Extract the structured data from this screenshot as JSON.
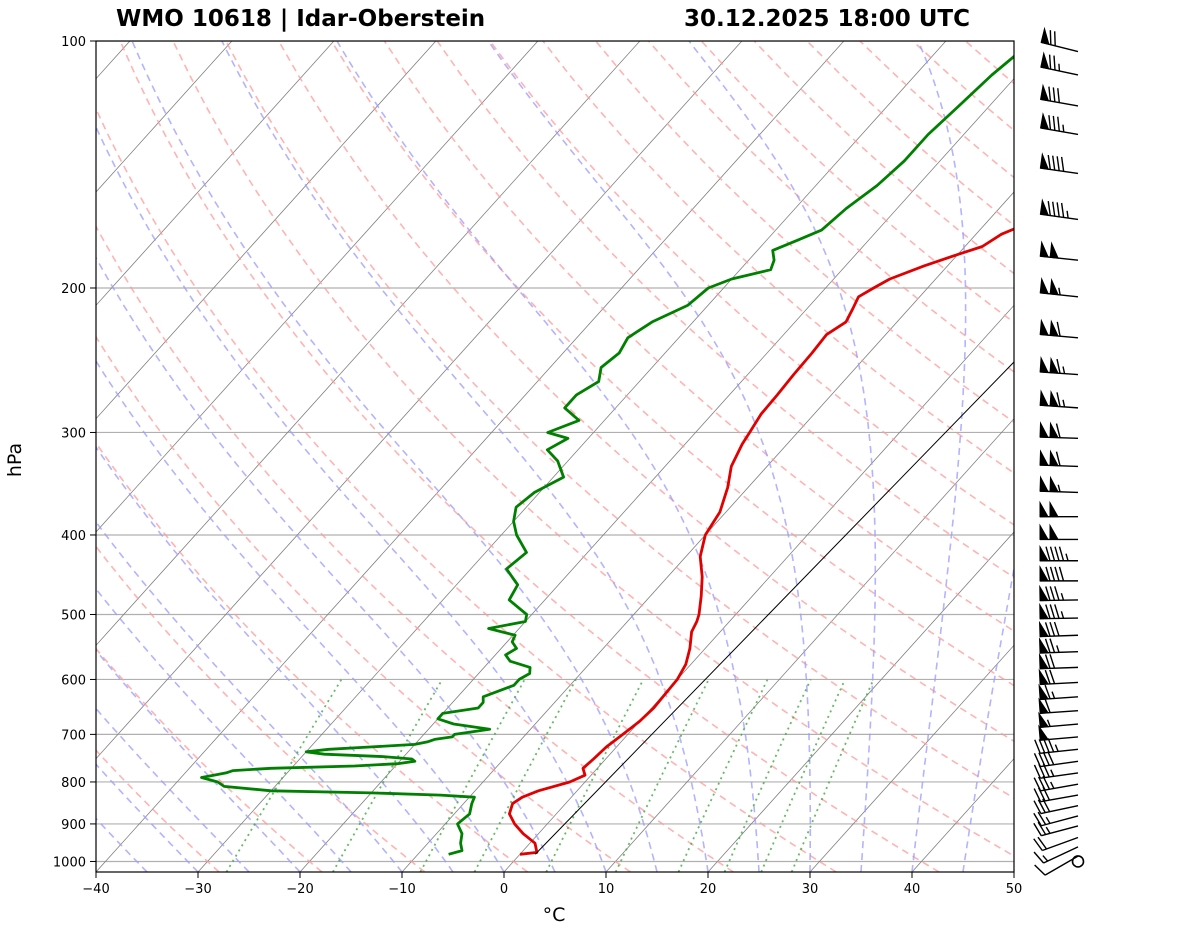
{
  "header": {
    "station": "WMO 10618 | Idar-Oberstein",
    "datetime": "30.12.2025 18:00 UTC"
  },
  "colors": {
    "temperature": "#e00000",
    "dewpoint": "#008000",
    "dry_adiabats": "#ff9a9a",
    "moist_adiabats": "#9a9aff",
    "mixing_ratio": "#3caa3c",
    "isotherms": "#808080",
    "grid": "#b0b0b0"
  },
  "chart_data": {
    "type": "line",
    "subtype": "skew-T log-P diagram",
    "xlabel": "°C",
    "ylabel": "hPa",
    "xlim": [
      -40,
      50
    ],
    "ylim": [
      1030,
      100
    ],
    "y_scale": "log",
    "x_ticks": [
      -40,
      -30,
      -20,
      -10,
      0,
      10,
      20,
      30,
      40,
      50
    ],
    "x_tick_labels": [
      "−40",
      "−30",
      "−20",
      "−10",
      "0",
      "10",
      "20",
      "30",
      "40",
      "50"
    ],
    "y_ticks": [
      100,
      200,
      300,
      400,
      500,
      600,
      700,
      800,
      900,
      1000
    ],
    "grid": true,
    "series": [
      {
        "key": "temperature",
        "pressure": [
          980,
          975,
          950,
          925,
          900,
          875,
          850,
          835,
          820,
          800,
          785,
          770,
          750,
          725,
          700,
          675,
          650,
          625,
          600,
          575,
          550,
          525,
          510,
          500,
          475,
          450,
          425,
          400,
          375,
          350,
          330,
          310,
          300,
          285,
          270,
          255,
          240,
          228,
          220,
          212,
          205,
          200,
          195,
          188,
          182,
          178,
          172,
          168,
          162,
          158,
          150,
          143,
          138,
          133,
          128,
          122,
          116,
          110,
          104,
          100
        ],
        "temperature": [
          0.0,
          1.5,
          0.5,
          -1.5,
          -3.2,
          -4.6,
          -5.2,
          -4.8,
          -3.8,
          -1.5,
          -0.6,
          -1.4,
          -1.2,
          -1.0,
          -0.5,
          0.0,
          0.2,
          0.1,
          0.0,
          -0.5,
          -1.5,
          -2.8,
          -3.2,
          -3.6,
          -5.0,
          -6.6,
          -8.6,
          -10.0,
          -10.6,
          -12.0,
          -13.5,
          -14.4,
          -14.7,
          -15.2,
          -15.3,
          -15.5,
          -15.6,
          -15.8,
          -15.0,
          -15.5,
          -16.0,
          -15.3,
          -14.5,
          -12.3,
          -10.0,
          -8.3,
          -7.5,
          -6.3,
          -5.5,
          -4.6,
          -3.8,
          -2.0,
          -1.0,
          0.0,
          1.0,
          2.0,
          3.0,
          4.0,
          5.5,
          6.5
        ]
      },
      {
        "key": "dewpoint",
        "pressure": [
          980,
          970,
          950,
          925,
          900,
          875,
          850,
          835,
          830,
          825,
          820,
          810,
          800,
          790,
          785,
          780,
          775,
          770,
          765,
          760,
          755,
          750,
          745,
          740,
          735,
          730,
          725,
          720,
          715,
          710,
          705,
          700,
          690,
          680,
          670,
          660,
          650,
          640,
          630,
          620,
          610,
          600,
          590,
          580,
          570,
          560,
          550,
          540,
          530,
          520,
          510,
          500,
          480,
          460,
          440,
          420,
          400,
          385,
          370,
          355,
          340,
          325,
          315,
          305,
          300,
          290,
          280,
          270,
          260,
          250,
          240,
          230,
          220,
          210,
          200,
          195,
          190,
          185,
          180,
          175,
          170,
          160,
          150,
          140,
          130,
          120,
          110,
          100
        ],
        "temperature": [
          -7.0,
          -6.0,
          -6.8,
          -7.5,
          -8.8,
          -8.5,
          -9.2,
          -9.5,
          -13.0,
          -20.0,
          -30.0,
          -35.0,
          -36.0,
          -38.0,
          -37.0,
          -36.0,
          -35.5,
          -32.0,
          -24.0,
          -20.0,
          -18.5,
          -19.0,
          -22.0,
          -28.0,
          -30.0,
          -28.0,
          -24.0,
          -20.0,
          -19.0,
          -18.5,
          -17.0,
          -17.0,
          -14.0,
          -18.0,
          -20.0,
          -20.0,
          -17.0,
          -17.0,
          -17.5,
          -16.5,
          -15.5,
          -15.5,
          -15.0,
          -15.5,
          -18.0,
          -19.0,
          -18.5,
          -19.5,
          -19.8,
          -23.0,
          -20.0,
          -20.5,
          -23.5,
          -24.0,
          -26.5,
          -26.0,
          -28.5,
          -30.0,
          -31.0,
          -30.5,
          -29.0,
          -31.0,
          -33.0,
          -32.0,
          -34.5,
          -32.5,
          -35.0,
          -35.0,
          -34.0,
          -35.0,
          -34.5,
          -35.0,
          -34.0,
          -32.0,
          -31.5,
          -30.0,
          -27.0,
          -27.5,
          -28.5,
          -27.0,
          -25.5,
          -25.0,
          -24.0,
          -23.5,
          -23.5,
          -23.0,
          -22.5,
          -21.5
        ]
      }
    ],
    "wind_barbs": {
      "pressure": [
        1000,
        985,
        960,
        935,
        905,
        880,
        855,
        830,
        805,
        780,
        755,
        730,
        705,
        680,
        655,
        630,
        605,
        580,
        555,
        530,
        505,
        480,
        455,
        430,
        405,
        380,
        355,
        330,
        305,
        280,
        255,
        230,
        205,
        185,
        165,
        145,
        130,
        120,
        110,
        103
      ],
      "speed_kt": [
        0,
        10,
        15,
        20,
        25,
        25,
        30,
        30,
        35,
        35,
        40,
        45,
        50,
        55,
        60,
        65,
        70,
        70,
        75,
        80,
        85,
        85,
        90,
        95,
        100,
        100,
        105,
        110,
        110,
        115,
        115,
        110,
        105,
        100,
        95,
        90,
        85,
        80,
        75,
        70
      ],
      "direction_deg": [
        0,
        240,
        245,
        250,
        255,
        255,
        258,
        260,
        260,
        262,
        262,
        264,
        265,
        265,
        266,
        266,
        267,
        268,
        268,
        268,
        269,
        269,
        270,
        270,
        270,
        270,
        272,
        272,
        272,
        274,
        274,
        275,
        276,
        276,
        278,
        278,
        280,
        280,
        282,
        284
      ]
    }
  }
}
